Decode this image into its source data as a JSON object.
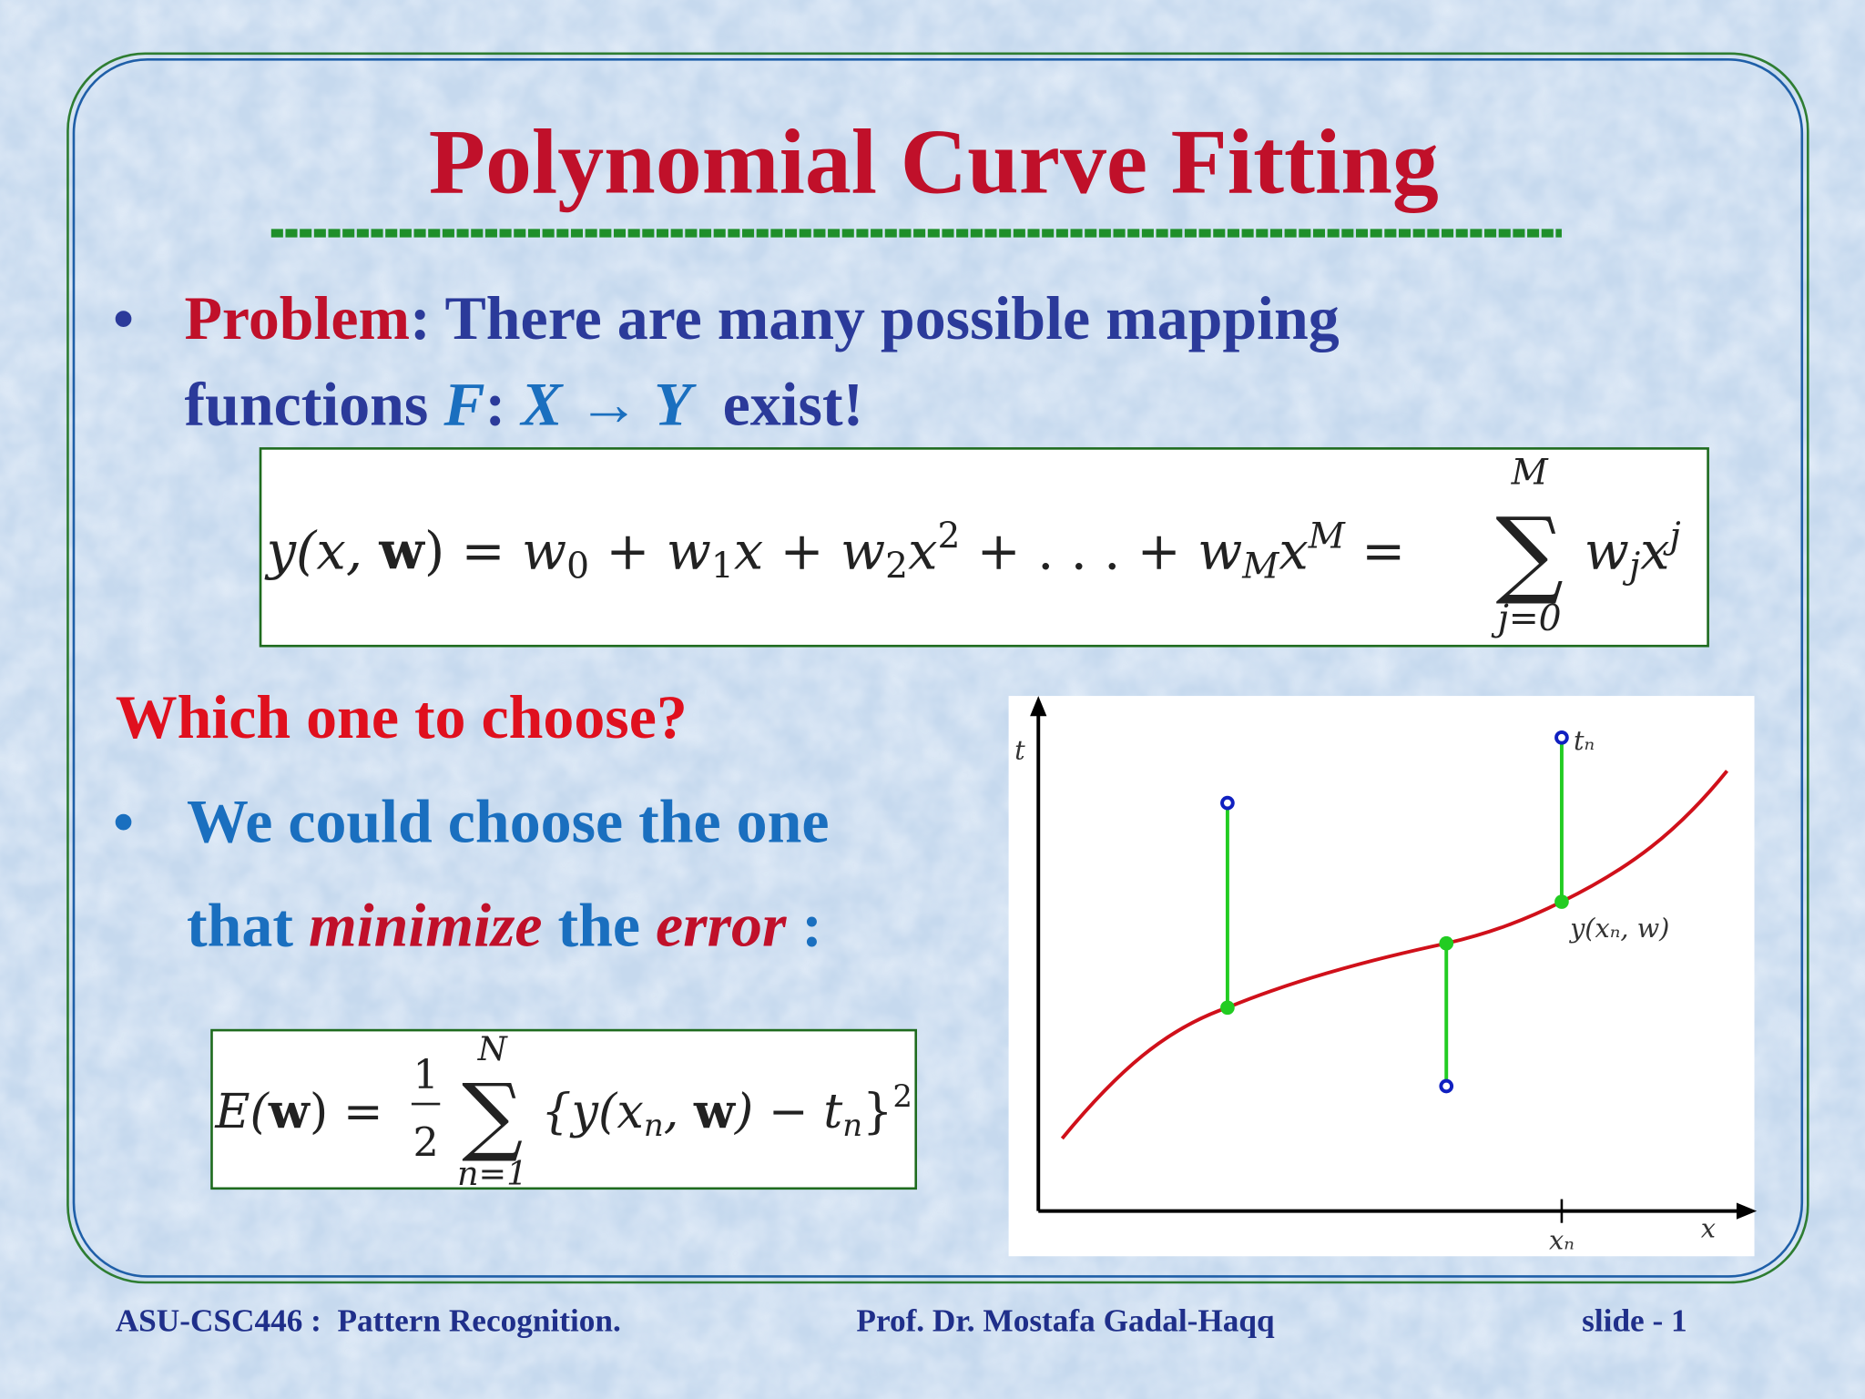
{
  "title": "Polynomial Curve Fitting",
  "bullet1": {
    "marker": "•",
    "label": "Problem",
    "colon": ":",
    "text": " There are many possible mapping",
    "line2": "functions ",
    "F": "F",
    "sep": ":",
    "map": "X → Y",
    "end": "  exist!"
  },
  "formula1": {
    "pieces": [
      "y(x, ",
      "w",
      ") = ",
      "w",
      "0",
      " + ",
      "w",
      "1",
      "x + ",
      "w",
      "2",
      "x",
      "2",
      " + . . . + ",
      "w",
      "M",
      "x",
      "M",
      " ="
    ],
    "sum": "∑",
    "upper": "M",
    "lower": "j=0",
    "tail": [
      "w",
      "j",
      "x",
      "j"
    ]
  },
  "question": "Which one to choose?",
  "bullet2": {
    "marker": "•",
    "line1": "We could choose the one",
    "pre": "that ",
    "minimize": "minimize",
    "mid": " the ",
    "error": "error",
    "end": " :"
  },
  "formula2": {
    "lhs": [
      "E(",
      "w",
      ") = "
    ],
    "num": "1",
    "den": "2",
    "sum": "∑",
    "upper": "N",
    "lower": "n=1",
    "rhs": [
      "{y(x",
      "n",
      ", ",
      "w",
      ") − t",
      "n",
      "}",
      "2"
    ]
  },
  "graph": {
    "y_axis": "t",
    "x_axis": "x",
    "target": "tₙ",
    "prediction": "y(xₙ, w)",
    "x_point": "xₙ"
  },
  "footer": {
    "course": "ASU-CSC446 :  Pattern Recognition.",
    "author": "Prof. Dr. Mostafa Gadal-Haqq",
    "slide": "slide - 1"
  }
}
